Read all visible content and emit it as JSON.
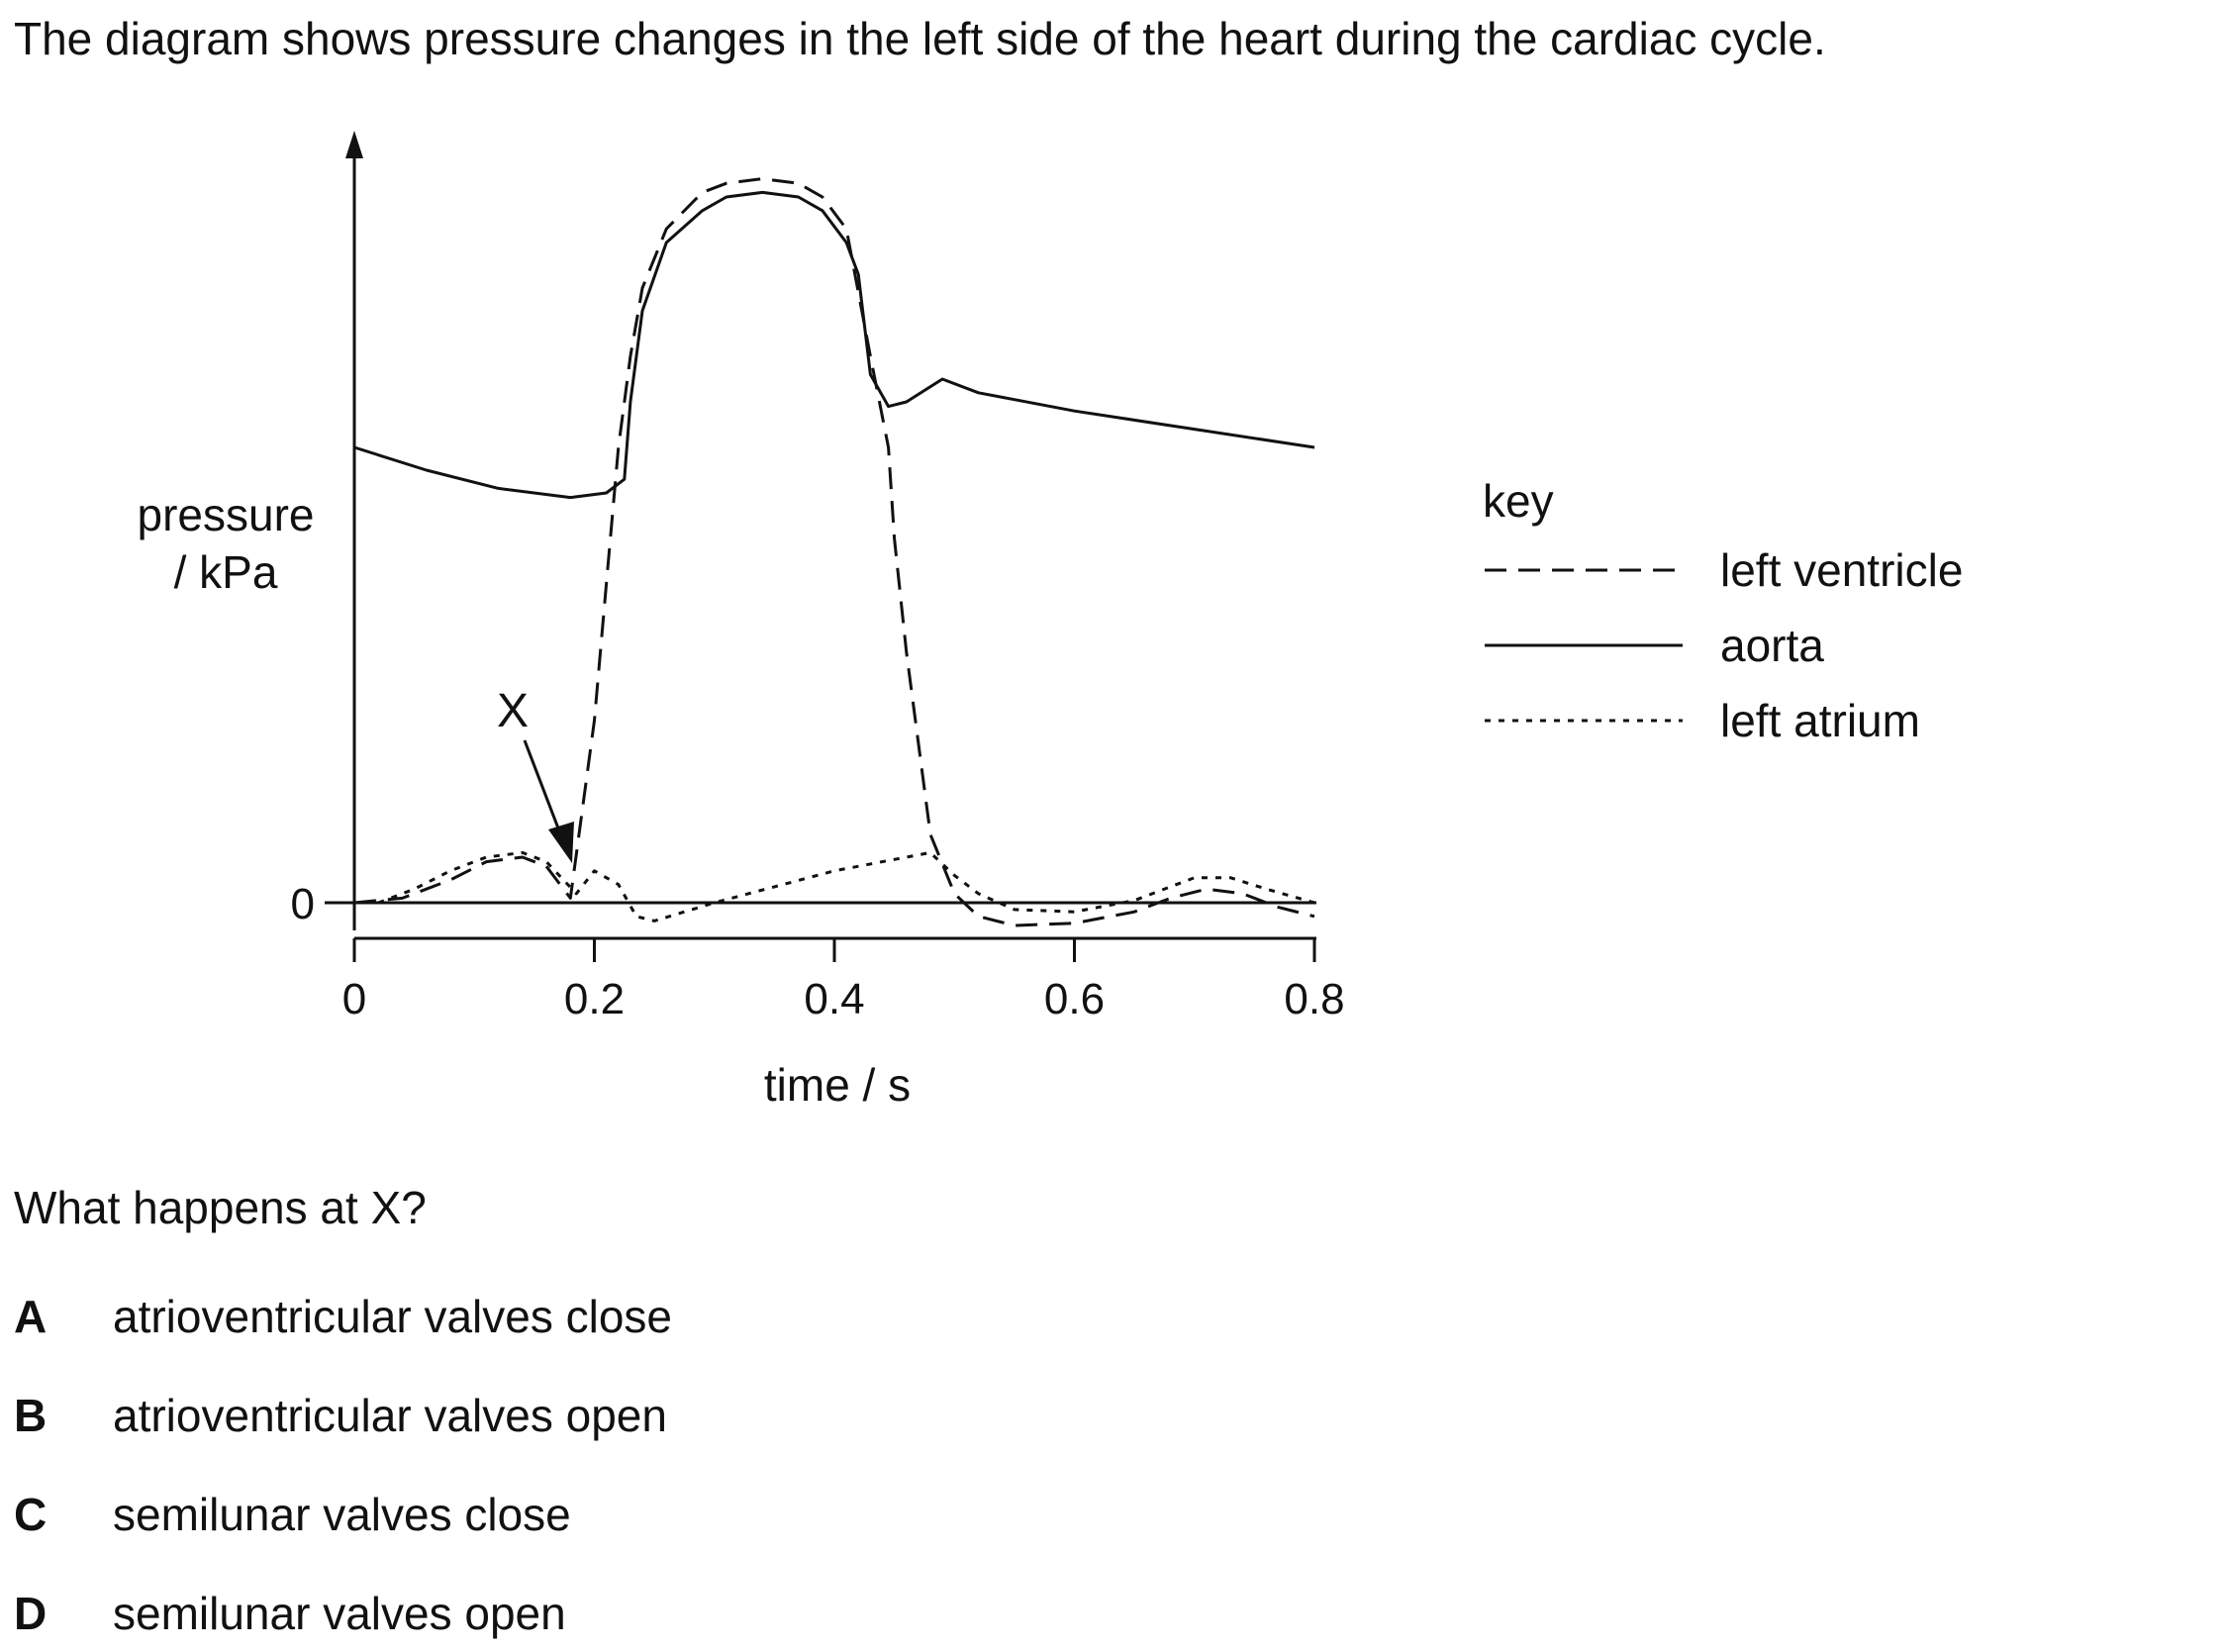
{
  "intro_text": "The diagram shows pressure changes in the left side of the heart during the cardiac cycle.",
  "chart_data": {
    "type": "line",
    "title": "",
    "xlabel": "time / s",
    "ylabel": "pressure / kPa",
    "x_ticks": [
      "0",
      "0.2",
      "0.4",
      "0.6",
      "0.8"
    ],
    "xlim": [
      0,
      0.8
    ],
    "y_ticks": [
      "0"
    ],
    "y_values_note": "",
    "legend": {
      "title": "key",
      "placement": "right",
      "entries": [
        {
          "label": "left ventricle",
          "style": "dashed"
        },
        {
          "label": "aorta",
          "style": "solid"
        },
        {
          "label": "left atrium",
          "style": "dotted"
        }
      ]
    },
    "annotations": [
      {
        "label": "X",
        "points_to": {
          "series": "left ventricle",
          "x": 0.18,
          "y": 0.1
        }
      }
    ],
    "series": [
      {
        "name": "aorta",
        "style": "solid",
        "points": [
          [
            0.0,
            10.0
          ],
          [
            0.06,
            9.5
          ],
          [
            0.12,
            9.1
          ],
          [
            0.18,
            8.9
          ],
          [
            0.21,
            9.0
          ],
          [
            0.225,
            9.3
          ],
          [
            0.23,
            11.0
          ],
          [
            0.24,
            13.0
          ],
          [
            0.26,
            14.5
          ],
          [
            0.29,
            15.2
          ],
          [
            0.31,
            15.5
          ],
          [
            0.34,
            15.6
          ],
          [
            0.37,
            15.5
          ],
          [
            0.39,
            15.2
          ],
          [
            0.41,
            14.5
          ],
          [
            0.42,
            13.8
          ],
          [
            0.43,
            11.6
          ],
          [
            0.445,
            10.9
          ],
          [
            0.46,
            11.0
          ],
          [
            0.49,
            11.5
          ],
          [
            0.52,
            11.2
          ],
          [
            0.6,
            10.8
          ],
          [
            0.7,
            10.4
          ],
          [
            0.8,
            10.0
          ]
        ]
      },
      {
        "name": "left ventricle",
        "style": "dashed",
        "points": [
          [
            0.0,
            0.0
          ],
          [
            0.04,
            0.1
          ],
          [
            0.08,
            0.5
          ],
          [
            0.11,
            0.9
          ],
          [
            0.14,
            1.0
          ],
          [
            0.16,
            0.8
          ],
          [
            0.18,
            0.1
          ],
          [
            0.2,
            4.0
          ],
          [
            0.21,
            7.0
          ],
          [
            0.22,
            10.0
          ],
          [
            0.23,
            12.0
          ],
          [
            0.24,
            13.5
          ],
          [
            0.26,
            14.8
          ],
          [
            0.29,
            15.6
          ],
          [
            0.31,
            15.8
          ],
          [
            0.34,
            15.9
          ],
          [
            0.37,
            15.8
          ],
          [
            0.39,
            15.5
          ],
          [
            0.41,
            14.8
          ],
          [
            0.43,
            12.0
          ],
          [
            0.445,
            10.0
          ],
          [
            0.45,
            8.0
          ],
          [
            0.46,
            5.5
          ],
          [
            0.47,
            3.5
          ],
          [
            0.48,
            1.5
          ],
          [
            0.5,
            0.2
          ],
          [
            0.52,
            -0.3
          ],
          [
            0.55,
            -0.5
          ],
          [
            0.6,
            -0.45
          ],
          [
            0.65,
            -0.2
          ],
          [
            0.68,
            0.1
          ],
          [
            0.71,
            0.3
          ],
          [
            0.74,
            0.2
          ],
          [
            0.77,
            -0.1
          ],
          [
            0.8,
            -0.3
          ]
        ]
      },
      {
        "name": "left atrium",
        "style": "dotted",
        "points": [
          [
            0.02,
            0.0
          ],
          [
            0.05,
            0.3
          ],
          [
            0.08,
            0.7
          ],
          [
            0.11,
            1.0
          ],
          [
            0.14,
            1.1
          ],
          [
            0.16,
            0.9
          ],
          [
            0.185,
            0.2
          ],
          [
            0.2,
            0.7
          ],
          [
            0.22,
            0.4
          ],
          [
            0.235,
            -0.3
          ],
          [
            0.25,
            -0.4
          ],
          [
            0.3,
            0.0
          ],
          [
            0.35,
            0.35
          ],
          [
            0.4,
            0.7
          ],
          [
            0.45,
            0.95
          ],
          [
            0.48,
            1.1
          ],
          [
            0.5,
            0.6
          ],
          [
            0.52,
            0.2
          ],
          [
            0.55,
            -0.15
          ],
          [
            0.6,
            -0.2
          ],
          [
            0.65,
            0.05
          ],
          [
            0.7,
            0.55
          ],
          [
            0.73,
            0.55
          ],
          [
            0.76,
            0.3
          ],
          [
            0.8,
            0.0
          ]
        ]
      }
    ]
  },
  "question": "What happens at X?",
  "options": [
    {
      "letter": "A",
      "text": "atrioventricular valves close"
    },
    {
      "letter": "B",
      "text": "atrioventricular valves open"
    },
    {
      "letter": "C",
      "text": "semilunar valves close"
    },
    {
      "letter": "D",
      "text": "semilunar valves open"
    }
  ]
}
